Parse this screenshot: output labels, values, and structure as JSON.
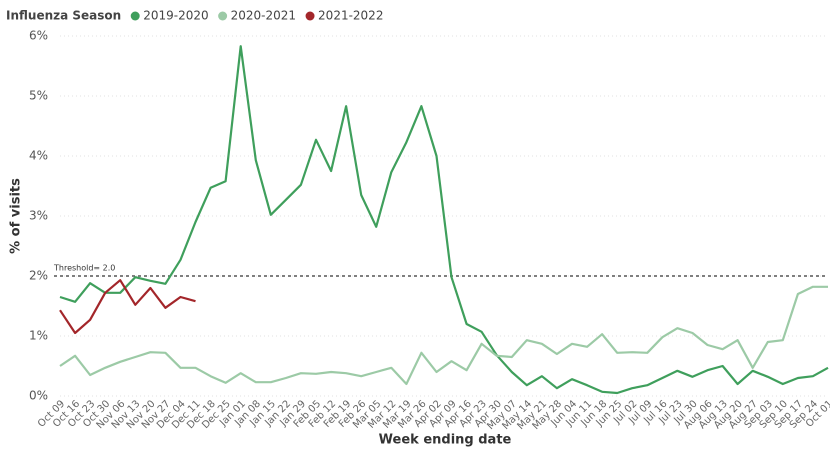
{
  "chart_data": {
    "type": "line",
    "legend_title": "Influenza Season",
    "y_label": "% of visits",
    "x_label": "Week ending date",
    "categories": [
      "Oct 09",
      "Oct 16",
      "Oct 23",
      "Oct 30",
      "Nov 06",
      "Nov 13",
      "Nov 20",
      "Nov 27",
      "Dec 04",
      "Dec 11",
      "Dec 18",
      "Dec 25",
      "Jan 01",
      "Jan 08",
      "Jan 15",
      "Jan 22",
      "Jan 29",
      "Feb 05",
      "Feb 12",
      "Feb 19",
      "Feb 26",
      "Mar 05",
      "Mar 12",
      "Mar 19",
      "Mar 26",
      "Apr 02",
      "Apr 09",
      "Apr 16",
      "Apr 23",
      "Apr 30",
      "May 07",
      "May 14",
      "May 21",
      "May 28",
      "Jun 04",
      "Jun 11",
      "Jun 18",
      "Jun 25",
      "Jul 02",
      "Jul 09",
      "Jul 16",
      "Jul 23",
      "Jul 30",
      "Aug 06",
      "Aug 13",
      "Aug 20",
      "Aug 27",
      "Sep 03",
      "Sep 10",
      "Sep 17",
      "Sep 24",
      "Oct 01"
    ],
    "series": [
      {
        "name": "2019-2020",
        "color": "#3f9f5c",
        "values": [
          1.65,
          1.57,
          1.88,
          1.72,
          1.72,
          1.98,
          1.92,
          1.87,
          2.27,
          2.9,
          3.47,
          3.58,
          5.83,
          3.93,
          3.02,
          3.27,
          3.52,
          4.27,
          3.75,
          4.83,
          3.35,
          2.82,
          3.73,
          4.23,
          4.83,
          4.0,
          1.98,
          1.2,
          1.07,
          0.68,
          0.4,
          0.18,
          0.33,
          0.13,
          0.28,
          0.18,
          0.07,
          0.05,
          0.13,
          0.18,
          0.3,
          0.42,
          0.32,
          0.43,
          0.5,
          0.2,
          0.42,
          0.32,
          0.2,
          0.3,
          0.33,
          0.47
        ]
      },
      {
        "name": "2020-2021",
        "color": "#9ccaa6",
        "values": [
          0.5,
          0.67,
          0.35,
          0.47,
          0.57,
          0.65,
          0.73,
          0.72,
          0.47,
          0.47,
          0.33,
          0.22,
          0.38,
          0.23,
          0.23,
          0.3,
          0.38,
          0.37,
          0.4,
          0.38,
          0.33,
          0.4,
          0.47,
          0.2,
          0.72,
          0.4,
          0.58,
          0.43,
          0.87,
          0.67,
          0.65,
          0.93,
          0.87,
          0.7,
          0.87,
          0.82,
          1.03,
          0.72,
          0.73,
          0.72,
          0.98,
          1.13,
          1.05,
          0.85,
          0.78,
          0.93,
          0.47,
          0.9,
          0.93,
          1.7,
          1.82,
          1.82
        ]
      },
      {
        "name": "2021-2022",
        "color": "#a3262a",
        "values": [
          1.43,
          1.05,
          1.27,
          1.72,
          1.93,
          1.52,
          1.8,
          1.47,
          1.65,
          1.58,
          null,
          null,
          null,
          null,
          null,
          null,
          null,
          null,
          null,
          null,
          null,
          null,
          null,
          null,
          null,
          null,
          null,
          null,
          null,
          null,
          null,
          null,
          null,
          null,
          null,
          null,
          null,
          null,
          null,
          null,
          null,
          null,
          null,
          null,
          null,
          null,
          null,
          null,
          null,
          null,
          null,
          null
        ]
      }
    ],
    "ylim": [
      0,
      6
    ],
    "yticks": [
      {
        "value": 0,
        "label": "0%"
      },
      {
        "value": 1,
        "label": "1%"
      },
      {
        "value": 2,
        "label": "2%"
      },
      {
        "value": 3,
        "label": "3%"
      },
      {
        "value": 4,
        "label": "4%"
      },
      {
        "value": 5,
        "label": "5%"
      },
      {
        "value": 6,
        "label": "6%"
      }
    ],
    "grid": true,
    "threshold": {
      "value": 2,
      "label": "Threshold= 2.0"
    }
  }
}
